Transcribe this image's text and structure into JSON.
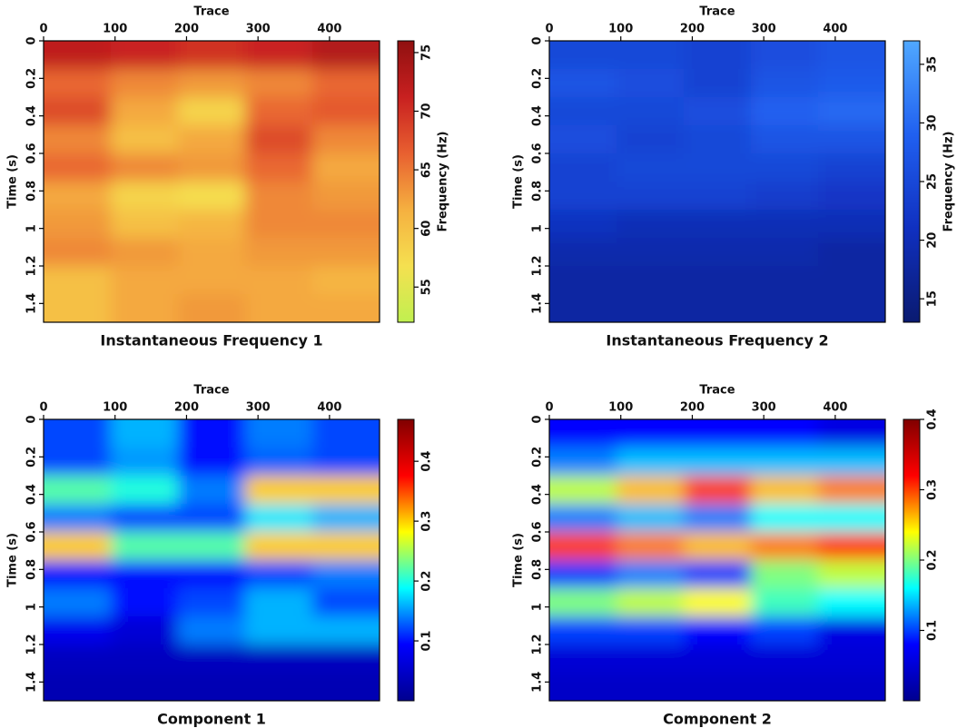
{
  "chart_data": [
    {
      "type": "heatmap",
      "title": "Instantaneous Frequency 1",
      "xlabel": "Trace",
      "ylabel": "Time (s)",
      "colorbar_label": "Frequency (Hz)",
      "xlim": [
        0,
        470
      ],
      "xticks": [
        0,
        100,
        200,
        300,
        400
      ],
      "ylim": [
        0,
        1.5
      ],
      "yticks": [
        0,
        0.2,
        0.4,
        0.6,
        0.8,
        1,
        1.2,
        1.4
      ],
      "clim": [
        52,
        76
      ],
      "cticks": [
        55,
        60,
        65,
        70,
        75
      ],
      "colormap": [
        "#c0f050",
        "#f5e050",
        "#f5b040",
        "#e86030",
        "#c82020",
        "#901010"
      ],
      "values": [
        [
          72,
          71,
          70,
          71,
          73
        ],
        [
          66,
          64,
          63,
          64,
          66
        ],
        [
          68,
          62,
          58,
          66,
          67
        ],
        [
          64,
          60,
          62,
          68,
          64
        ],
        [
          66,
          64,
          63,
          66,
          62
        ],
        [
          62,
          58,
          57,
          64,
          63
        ],
        [
          63,
          60,
          61,
          64,
          64
        ],
        [
          64,
          63,
          62,
          63,
          63
        ],
        [
          60,
          62,
          62,
          62,
          61
        ],
        [
          60,
          62,
          63,
          62,
          62
        ]
      ]
    },
    {
      "type": "heatmap",
      "title": "Instantaneous Frequency 2",
      "xlabel": "Trace",
      "ylabel": "Time (s)",
      "colorbar_label": "Frequency (Hz)",
      "xlim": [
        0,
        470
      ],
      "xticks": [
        0,
        100,
        200,
        300,
        400
      ],
      "ylim": [
        0,
        1.5
      ],
      "yticks": [
        0,
        0.2,
        0.4,
        0.6,
        0.8,
        1,
        1.2,
        1.4
      ],
      "clim": [
        13,
        37
      ],
      "cticks": [
        15,
        20,
        25,
        30,
        35
      ],
      "colormap": [
        "#0a1a70",
        "#1030c0",
        "#2060f0",
        "#50a8ff"
      ],
      "values": [
        [
          25,
          25,
          24,
          26,
          27
        ],
        [
          27,
          26,
          24,
          27,
          28
        ],
        [
          25,
          25,
          26,
          29,
          30
        ],
        [
          26,
          24,
          25,
          27,
          27
        ],
        [
          24,
          25,
          25,
          25,
          24
        ],
        [
          24,
          24,
          24,
          23,
          22
        ],
        [
          21,
          20,
          20,
          20,
          20
        ],
        [
          19,
          19,
          19,
          19,
          18
        ],
        [
          18,
          18,
          18,
          18,
          18
        ],
        [
          18,
          18,
          18,
          18,
          18
        ]
      ]
    },
    {
      "type": "heatmap",
      "title": "Component 1",
      "xlabel": "Trace",
      "ylabel": "Time (s)",
      "xlim": [
        0,
        470
      ],
      "xticks": [
        0,
        100,
        200,
        300,
        400
      ],
      "ylim": [
        0,
        1.5
      ],
      "yticks": [
        0,
        0.2,
        0.4,
        0.6,
        0.8,
        1,
        1.2,
        1.4
      ],
      "clim": [
        0,
        0.47
      ],
      "cticks": [
        0.1,
        0.2,
        0.3,
        0.4
      ],
      "colormap": [
        "#00008f",
        "#0000ff",
        "#00ffff",
        "#ffff00",
        "#ff0000",
        "#800000"
      ],
      "values": [
        [
          0.12,
          0.16,
          0.1,
          0.14,
          0.12
        ],
        [
          0.12,
          0.15,
          0.1,
          0.13,
          0.12
        ],
        [
          0.22,
          0.2,
          0.14,
          0.3,
          0.3
        ],
        [
          0.14,
          0.12,
          0.12,
          0.18,
          0.16
        ],
        [
          0.3,
          0.22,
          0.22,
          0.3,
          0.3
        ],
        [
          0.1,
          0.1,
          0.1,
          0.12,
          0.14
        ],
        [
          0.14,
          0.1,
          0.12,
          0.16,
          0.12
        ],
        [
          0.08,
          0.06,
          0.14,
          0.16,
          0.16
        ],
        [
          0.04,
          0.04,
          0.04,
          0.04,
          0.04
        ],
        [
          0.03,
          0.03,
          0.03,
          0.03,
          0.03
        ]
      ]
    },
    {
      "type": "heatmap",
      "title": "Component 2",
      "xlabel": "Trace",
      "ylabel": "Time (s)",
      "xlim": [
        0,
        470
      ],
      "xticks": [
        0,
        100,
        200,
        300,
        400
      ],
      "ylim": [
        0,
        1.5
      ],
      "yticks": [
        0,
        0.2,
        0.4,
        0.6,
        0.8,
        1,
        1.2,
        1.4
      ],
      "clim": [
        0,
        0.4
      ],
      "cticks": [
        0.1,
        0.2,
        0.3,
        0.4
      ],
      "colormap": [
        "#00008f",
        "#0000ff",
        "#00ffff",
        "#ffff00",
        "#ff0000",
        "#800000"
      ],
      "values": [
        [
          0.08,
          0.08,
          0.08,
          0.08,
          0.06
        ],
        [
          0.12,
          0.14,
          0.14,
          0.14,
          0.14
        ],
        [
          0.22,
          0.26,
          0.3,
          0.26,
          0.28
        ],
        [
          0.12,
          0.14,
          0.12,
          0.16,
          0.16
        ],
        [
          0.3,
          0.28,
          0.26,
          0.28,
          0.3
        ],
        [
          0.1,
          0.12,
          0.1,
          0.2,
          0.22
        ],
        [
          0.2,
          0.22,
          0.24,
          0.18,
          0.16
        ],
        [
          0.1,
          0.1,
          0.08,
          0.1,
          0.06
        ],
        [
          0.05,
          0.05,
          0.05,
          0.05,
          0.05
        ],
        [
          0.04,
          0.04,
          0.04,
          0.04,
          0.04
        ]
      ]
    }
  ]
}
